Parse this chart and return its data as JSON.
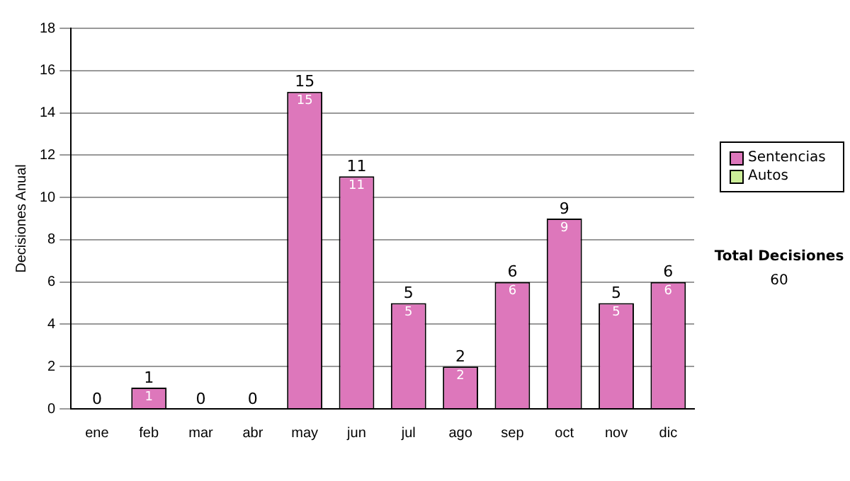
{
  "chart_data": {
    "type": "bar",
    "ylabel": "Decisiones Anual",
    "categories": [
      "ene",
      "feb",
      "mar",
      "abr",
      "may",
      "jun",
      "jul",
      "ago",
      "sep",
      "oct",
      "nov",
      "dic"
    ],
    "series": [
      {
        "name": "Sentencias",
        "color": "#dd77bb",
        "values": [
          0,
          1,
          0,
          0,
          15,
          11,
          5,
          2,
          6,
          9,
          5,
          6
        ],
        "value_labels": [
          null,
          "1",
          null,
          null,
          "15",
          "11",
          "5",
          "2",
          "6",
          "9",
          "5",
          "6"
        ]
      },
      {
        "name": "Autos",
        "color": "#ccee99",
        "values": [
          0,
          0,
          0,
          0,
          0,
          0,
          0,
          0,
          0,
          0,
          0,
          0
        ]
      }
    ],
    "stacked": true,
    "totals": [
      "0",
      "1",
      "0",
      "0",
      "15",
      "11",
      "5",
      "2",
      "6",
      "9",
      "5",
      "6"
    ],
    "ylim": [
      0,
      18
    ],
    "yticks": [
      0,
      2,
      4,
      6,
      8,
      10,
      12,
      14,
      16,
      18
    ],
    "grid": "y",
    "legend": "right",
    "annotations": [
      "Total Decisiones",
      "60"
    ]
  }
}
